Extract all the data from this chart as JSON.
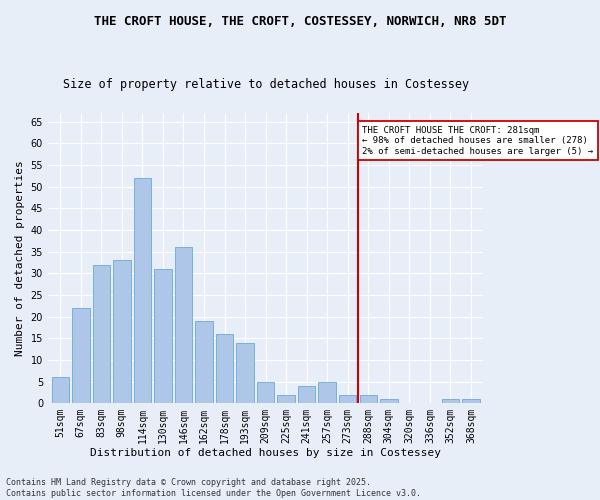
{
  "title_line1": "THE CROFT HOUSE, THE CROFT, COSTESSEY, NORWICH, NR8 5DT",
  "title_line2": "Size of property relative to detached houses in Costessey",
  "xlabel": "Distribution of detached houses by size in Costessey",
  "ylabel": "Number of detached properties",
  "categories": [
    "51sqm",
    "67sqm",
    "83sqm",
    "98sqm",
    "114sqm",
    "130sqm",
    "146sqm",
    "162sqm",
    "178sqm",
    "193sqm",
    "209sqm",
    "225sqm",
    "241sqm",
    "257sqm",
    "273sqm",
    "288sqm",
    "304sqm",
    "320sqm",
    "336sqm",
    "352sqm",
    "368sqm"
  ],
  "values": [
    6,
    22,
    32,
    33,
    52,
    31,
    36,
    19,
    16,
    14,
    5,
    2,
    4,
    5,
    2,
    2,
    1,
    0,
    0,
    1,
    1
  ],
  "bar_color": "#aec6e8",
  "bar_edge_color": "#6aaad4",
  "vline_x_index": 14.5,
  "vline_color": "#cc0000",
  "ylim": [
    0,
    67
  ],
  "yticks": [
    0,
    5,
    10,
    15,
    20,
    25,
    30,
    35,
    40,
    45,
    50,
    55,
    60,
    65
  ],
  "annotation_text": "THE CROFT HOUSE THE CROFT: 281sqm\n← 98% of detached houses are smaller (278)\n2% of semi-detached houses are larger (5) →",
  "annotation_box_color": "#ffffff",
  "annotation_border_color": "#cc0000",
  "footer_line1": "Contains HM Land Registry data © Crown copyright and database right 2025.",
  "footer_line2": "Contains public sector information licensed under the Open Government Licence v3.0.",
  "bg_color": "#e8eef8",
  "plot_bg_color": "#e8eef8",
  "grid_color": "#ffffff",
  "title_fontsize": 9,
  "subtitle_fontsize": 8.5,
  "axis_label_fontsize": 8,
  "tick_fontsize": 7,
  "footer_fontsize": 6
}
